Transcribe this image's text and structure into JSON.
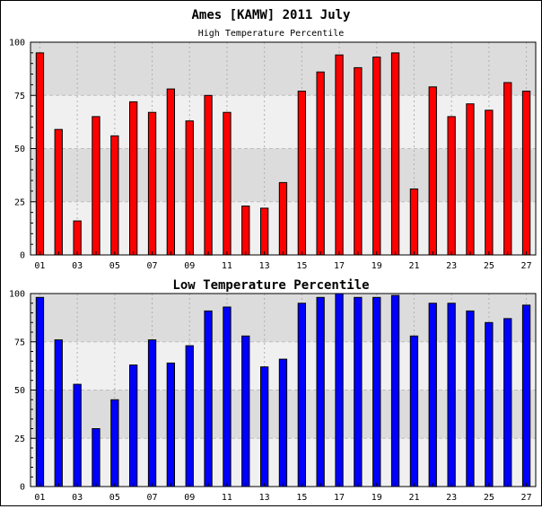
{
  "title": "Ames [KAMW] 2011 July",
  "chart_data": [
    {
      "type": "bar",
      "title": "High Temperature Percentile",
      "color": "#ff0000",
      "ylim": [
        0,
        100
      ],
      "yticks": [
        "0",
        "25",
        "50",
        "75",
        "100"
      ],
      "categories": [
        "01",
        "02",
        "03",
        "04",
        "05",
        "06",
        "07",
        "08",
        "09",
        "10",
        "11",
        "12",
        "13",
        "14",
        "15",
        "16",
        "17",
        "18",
        "19",
        "20",
        "21",
        "22",
        "23",
        "24",
        "25",
        "26",
        "27"
      ],
      "xtick_labels": [
        "01",
        "",
        "03",
        "",
        "05",
        "",
        "07",
        "",
        "09",
        "",
        "11",
        "",
        "13",
        "",
        "15",
        "",
        "17",
        "",
        "19",
        "",
        "21",
        "",
        "23",
        "",
        "25",
        "",
        "27"
      ],
      "values": [
        95,
        59,
        16,
        65,
        56,
        72,
        67,
        78,
        63,
        75,
        67,
        23,
        22,
        34,
        77,
        86,
        94,
        88,
        93,
        95,
        31,
        79,
        65,
        71,
        68,
        81,
        77
      ],
      "grid": true
    },
    {
      "type": "bar",
      "title": "Low Temperature Percentile",
      "color": "#0000ff",
      "ylim": [
        0,
        100
      ],
      "yticks": [
        "0",
        "25",
        "50",
        "75",
        "100"
      ],
      "categories": [
        "01",
        "02",
        "03",
        "04",
        "05",
        "06",
        "07",
        "08",
        "09",
        "10",
        "11",
        "12",
        "13",
        "14",
        "15",
        "16",
        "17",
        "18",
        "19",
        "20",
        "21",
        "22",
        "23",
        "24",
        "25",
        "26",
        "27"
      ],
      "xtick_labels": [
        "01",
        "",
        "03",
        "",
        "05",
        "",
        "07",
        "",
        "09",
        "",
        "11",
        "",
        "13",
        "",
        "15",
        "",
        "17",
        "",
        "19",
        "",
        "21",
        "",
        "23",
        "",
        "25",
        "",
        "27"
      ],
      "values": [
        98,
        76,
        53,
        30,
        45,
        63,
        76,
        64,
        73,
        91,
        93,
        78,
        62,
        66,
        95,
        98,
        100,
        98,
        98,
        99,
        78,
        95,
        95,
        91,
        85,
        87,
        94
      ],
      "grid": true
    }
  ]
}
